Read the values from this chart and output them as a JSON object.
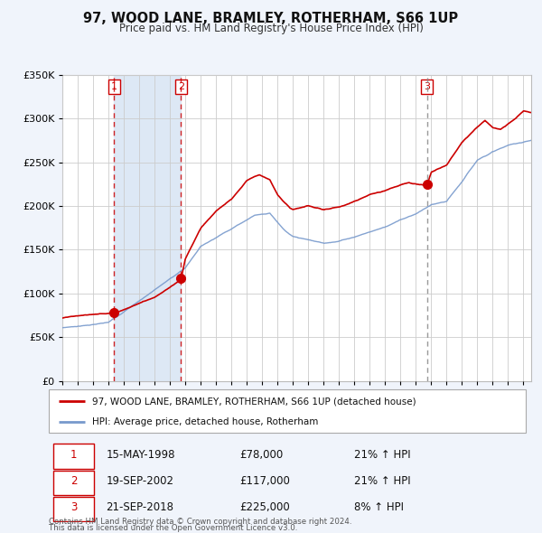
{
  "title": "97, WOOD LANE, BRAMLEY, ROTHERHAM, S66 1UP",
  "subtitle": "Price paid vs. HM Land Registry's House Price Index (HPI)",
  "ylim": [
    0,
    350000
  ],
  "yticks": [
    0,
    50000,
    100000,
    150000,
    200000,
    250000,
    300000,
    350000
  ],
  "ytick_labels": [
    "£0",
    "£50K",
    "£100K",
    "£150K",
    "£200K",
    "£250K",
    "£300K",
    "£350K"
  ],
  "sale_color": "#cc0000",
  "hpi_color": "#7799cc",
  "sale_label": "97, WOOD LANE, BRAMLEY, ROTHERHAM, S66 1UP (detached house)",
  "hpi_label": "HPI: Average price, detached house, Rotherham",
  "transactions": [
    {
      "num": 1,
      "date": "15-MAY-1998",
      "price": 78000,
      "pct": "21%",
      "year": 1998.37
    },
    {
      "num": 2,
      "date": "19-SEP-2002",
      "price": 117000,
      "pct": "21%",
      "year": 2002.72
    },
    {
      "num": 3,
      "date": "21-SEP-2018",
      "price": 225000,
      "pct": "8%",
      "year": 2018.72
    }
  ],
  "footer_line1": "Contains HM Land Registry data © Crown copyright and database right 2024.",
  "footer_line2": "This data is licensed under the Open Government Licence v3.0.",
  "bg_color": "#f0f4fb",
  "plot_bg_color": "#ffffff",
  "grid_color": "#cccccc",
  "span_color": "#dde8f5",
  "xmin": 1995,
  "xmax": 2025.5
}
